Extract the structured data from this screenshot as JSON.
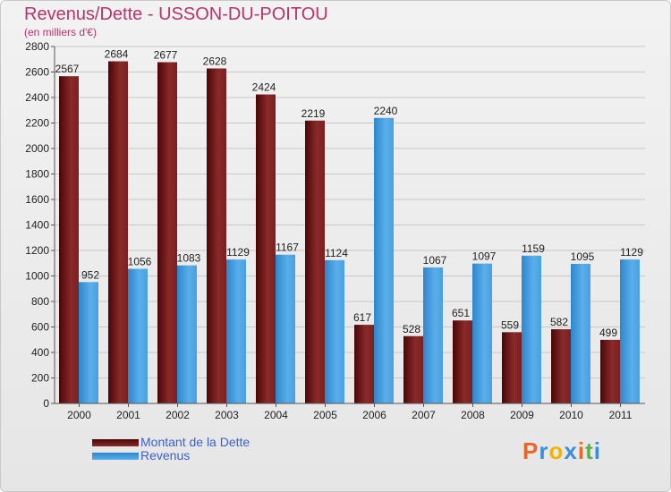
{
  "header": {
    "title": "Revenus/Dette - USSON-DU-POITOU",
    "subtitle": "(en milliers d'€)"
  },
  "chart_data": {
    "type": "bar",
    "title": "Revenus/Dette - USSON-DU-POITOU",
    "subtitle": "(en milliers d'€)",
    "xlabel": "",
    "ylabel": "",
    "ylim": [
      0,
      2800
    ],
    "yticks": [
      0,
      200,
      400,
      600,
      800,
      1000,
      1200,
      1400,
      1600,
      1800,
      2000,
      2200,
      2400,
      2600,
      2800
    ],
    "grid": true,
    "legend_position": "bottom-left",
    "categories": [
      "2000",
      "2001",
      "2002",
      "2003",
      "2004",
      "2005",
      "2006",
      "2007",
      "2008",
      "2009",
      "2010",
      "2011"
    ],
    "series": [
      {
        "name": "Montant de la Dette",
        "color": "#7a1f1f",
        "values": [
          2567,
          2684,
          2677,
          2628,
          2424,
          2219,
          617,
          528,
          651,
          559,
          582,
          499
        ]
      },
      {
        "name": "Revenus",
        "color": "#4a9fe0",
        "values": [
          952,
          1056,
          1083,
          1129,
          1167,
          1124,
          2240,
          1067,
          1097,
          1159,
          1095,
          1129
        ]
      }
    ]
  },
  "legend": {
    "items": [
      {
        "label": "Montant de la Dette"
      },
      {
        "label": "Revenus"
      }
    ]
  },
  "logo": {
    "letters": [
      "P",
      "r",
      "o",
      "x",
      "i",
      "t",
      "i"
    ],
    "colors": [
      "#e8662a",
      "#3a8fd8",
      "#f2b300",
      "#3a8fd8",
      "#e8662a",
      "#5ab34a",
      "#3a8fd8"
    ]
  }
}
